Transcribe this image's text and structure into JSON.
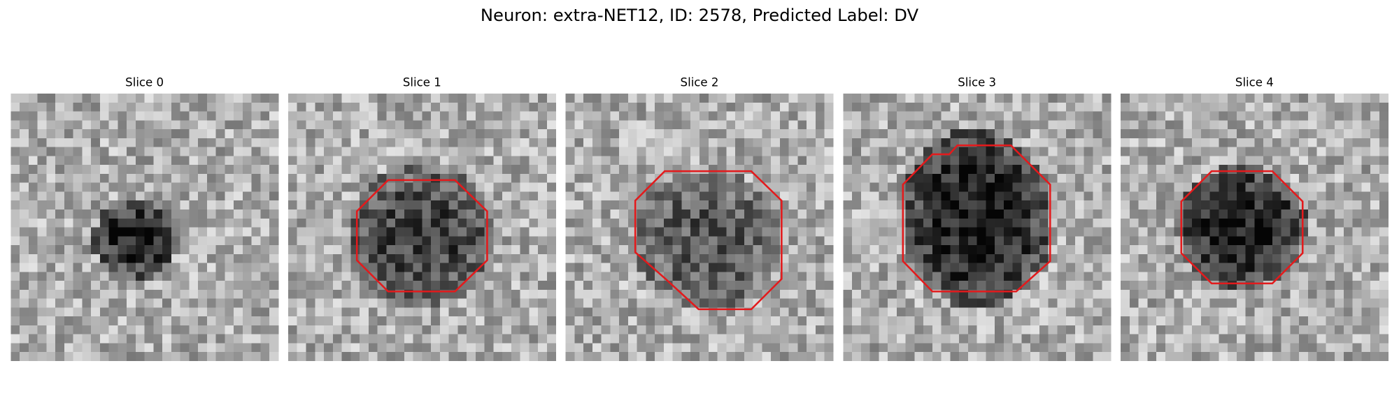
{
  "title": "Neuron: extra-NET12, ID: 2578, Predicted Label: DV",
  "panels": [
    {
      "title": "Slice 0"
    },
    {
      "title": "Slice 1"
    },
    {
      "title": "Slice 2"
    },
    {
      "title": "Slice 3"
    },
    {
      "title": "Slice 4"
    }
  ]
}
